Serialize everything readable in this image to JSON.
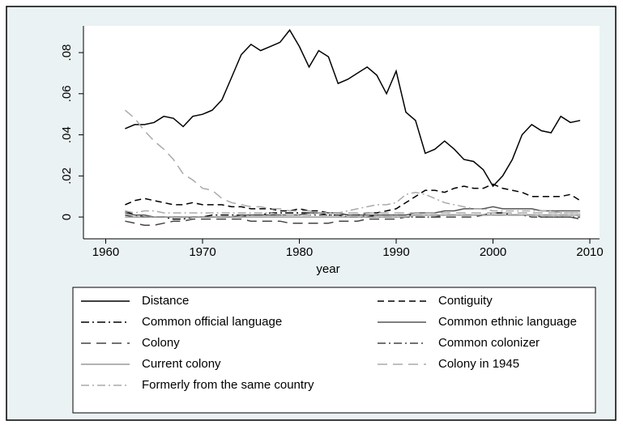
{
  "chart_data": {
    "type": "line",
    "x_label": "year",
    "x": [
      1962,
      1963,
      1964,
      1965,
      1966,
      1967,
      1968,
      1969,
      1970,
      1971,
      1972,
      1973,
      1974,
      1975,
      1976,
      1977,
      1978,
      1979,
      1980,
      1981,
      1982,
      1983,
      1984,
      1985,
      1986,
      1987,
      1988,
      1989,
      1990,
      1991,
      1992,
      1993,
      1994,
      1995,
      1996,
      1997,
      1998,
      1999,
      2000,
      2001,
      2002,
      2003,
      2004,
      2005,
      2006,
      2007,
      2008,
      2009
    ],
    "xlim": [
      1957.7,
      2011
    ],
    "xticks": [
      1960,
      1970,
      1980,
      1990,
      2000,
      2010
    ],
    "ylim": [
      -0.0106,
      0.093
    ],
    "yticks": [
      0,
      {
        "value": 0.02,
        "label": ".02"
      },
      {
        "value": 0.04,
        "label": ".04"
      },
      {
        "value": 0.06,
        "label": ".06"
      },
      {
        "value": 0.08,
        "label": ".08"
      }
    ],
    "series": [
      {
        "name": "Distance",
        "color": "#000000",
        "dash": "solid",
        "values": [
          0.043,
          0.045,
          0.045,
          0.046,
          0.049,
          0.048,
          0.044,
          0.049,
          0.05,
          0.052,
          0.057,
          0.068,
          0.079,
          0.084,
          0.081,
          0.083,
          0.085,
          0.091,
          0.083,
          0.073,
          0.081,
          0.078,
          0.065,
          0.067,
          0.07,
          0.073,
          0.069,
          0.06,
          0.071,
          0.051,
          0.047,
          0.031,
          0.033,
          0.037,
          0.033,
          0.028,
          0.027,
          0.023,
          0.015,
          0.02,
          0.028,
          0.04,
          0.045,
          0.042,
          0.041,
          0.049,
          0.046,
          0.047
        ]
      },
      {
        "name": "Contiguity",
        "color": "#000000",
        "dash": "dash",
        "values": [
          0.006,
          0.008,
          0.009,
          0.008,
          0.007,
          0.006,
          0.006,
          0.007,
          0.006,
          0.006,
          0.006,
          0.005,
          0.005,
          0.004,
          0.004,
          0.004,
          0.003,
          0.003,
          0.004,
          0.003,
          0.003,
          0.002,
          0.002,
          0.001,
          0.001,
          0.002,
          0.002,
          0.003,
          0.004,
          0.007,
          0.01,
          0.013,
          0.013,
          0.012,
          0.014,
          0.015,
          0.014,
          0.014,
          0.016,
          0.014,
          0.013,
          0.012,
          0.01,
          0.01,
          0.01,
          0.01,
          0.011,
          0.008
        ]
      },
      {
        "name": "Common official language",
        "color": "#000000",
        "dash": "dashdot",
        "values": [
          0.003,
          0.001,
          0.0,
          0.0,
          0.0,
          -0.001,
          -0.001,
          0.0,
          0.0,
          0.001,
          0.001,
          0.001,
          0.001,
          0.001,
          0.001,
          0.002,
          0.002,
          0.002,
          0.002,
          0.002,
          0.002,
          0.001,
          0.001,
          0.0,
          0.0,
          0.0,
          0.001,
          0.001,
          0.001,
          0.001,
          0.001,
          0.001,
          0.001,
          0.001,
          0.001,
          0.001,
          0.001,
          0.001,
          0.002,
          0.002,
          0.001,
          0.001,
          0.001,
          0.001,
          0.001,
          0.001,
          0.001,
          0.001
        ]
      },
      {
        "name": "Common ethnic language",
        "color": "#555555",
        "dash": "solid",
        "values": [
          0.002,
          0.001,
          0.001,
          0.0,
          0.0,
          0.0,
          0.0,
          0.0,
          0.0,
          0.0,
          0.0,
          0.0,
          0.001,
          0.001,
          0.001,
          0.001,
          0.001,
          0.001,
          0.001,
          0.002,
          0.002,
          0.002,
          0.002,
          0.001,
          0.001,
          0.001,
          0.001,
          0.001,
          0.001,
          0.001,
          0.002,
          0.002,
          0.002,
          0.003,
          0.003,
          0.004,
          0.004,
          0.004,
          0.005,
          0.004,
          0.004,
          0.004,
          0.004,
          0.003,
          0.003,
          0.003,
          0.003,
          0.003
        ]
      },
      {
        "name": "Colony",
        "color": "#444444",
        "dash": "longdash",
        "values": [
          -0.002,
          -0.003,
          -0.004,
          -0.004,
          -0.003,
          -0.002,
          -0.002,
          -0.001,
          -0.001,
          -0.001,
          -0.001,
          -0.001,
          -0.001,
          -0.002,
          -0.002,
          -0.002,
          -0.002,
          -0.003,
          -0.003,
          -0.003,
          -0.003,
          -0.003,
          -0.002,
          -0.002,
          -0.002,
          -0.001,
          -0.001,
          -0.001,
          -0.001,
          0.0,
          0.0,
          0.0,
          0.0,
          0.0,
          0.0,
          0.0,
          0.0,
          0.001,
          0.001,
          0.001,
          0.001,
          0.001,
          0.001,
          0.0,
          0.0,
          0.0,
          0.0,
          -0.001
        ]
      },
      {
        "name": "Common colonizer",
        "color": "#444444",
        "dash": "dashdot",
        "values": [
          0.001,
          0.0,
          0.0,
          0.0,
          0.0,
          0.0,
          0.0,
          0.0,
          0.0,
          0.0,
          0.0,
          0.0,
          0.0,
          0.001,
          0.001,
          0.001,
          0.001,
          0.001,
          0.001,
          0.001,
          0.001,
          0.001,
          0.001,
          0.001,
          0.001,
          0.0,
          0.0,
          0.0,
          0.0,
          0.0,
          0.0,
          0.0,
          0.0,
          0.001,
          0.001,
          0.001,
          0.001,
          0.001,
          0.001,
          0.001,
          0.001,
          0.001,
          0.0,
          0.0,
          0.0,
          0.0,
          0.0,
          0.0
        ]
      },
      {
        "name": "Current colony",
        "color": "#999999",
        "dash": "solid",
        "values": [
          0.0,
          0.0,
          0.0,
          0.0,
          0.0,
          0.0,
          0.0,
          0.0,
          0.0,
          0.0,
          0.0,
          0.0,
          0.0,
          0.0,
          0.0,
          0.0,
          0.0,
          0.0,
          0.0,
          0.0,
          0.0,
          0.0,
          0.0,
          0.0,
          0.0,
          0.0,
          0.0,
          0.0,
          0.0,
          0.0,
          0.001,
          0.001,
          0.001,
          0.001,
          0.001,
          0.001,
          0.001,
          0.001,
          0.001,
          0.001,
          0.001,
          0.001,
          0.001,
          0.001,
          0.001,
          0.001,
          0.001,
          0.001
        ]
      },
      {
        "name": "Colony in 1945",
        "color": "#aaaaaa",
        "dash": "longdash",
        "values": [
          0.052,
          0.048,
          0.042,
          0.037,
          0.033,
          0.028,
          0.021,
          0.018,
          0.014,
          0.013,
          0.009,
          0.007,
          0.006,
          0.005,
          0.005,
          0.004,
          0.004,
          0.003,
          0.003,
          0.003,
          0.002,
          0.002,
          0.002,
          0.002,
          0.002,
          0.002,
          0.002,
          0.002,
          0.002,
          0.002,
          0.002,
          0.002,
          0.002,
          0.002,
          0.002,
          0.002,
          0.002,
          0.002,
          0.002,
          0.002,
          0.002,
          0.002,
          0.002,
          0.002,
          0.002,
          0.002,
          0.002,
          0.002
        ]
      },
      {
        "name": "Formerly from the same country",
        "color": "#aaaaaa",
        "dash": "dashdot",
        "values": [
          0.003,
          0.002,
          0.003,
          0.003,
          0.002,
          0.002,
          0.002,
          0.002,
          0.002,
          0.002,
          0.002,
          0.002,
          0.002,
          0.002,
          0.002,
          0.002,
          0.001,
          0.001,
          0.001,
          0.001,
          0.002,
          0.002,
          0.002,
          0.003,
          0.004,
          0.005,
          0.006,
          0.006,
          0.007,
          0.011,
          0.012,
          0.011,
          0.009,
          0.007,
          0.006,
          0.005,
          0.004,
          0.004,
          0.003,
          0.003,
          0.003,
          0.003,
          0.003,
          0.003,
          0.003,
          0.002,
          0.002,
          0.002
        ]
      }
    ]
  }
}
